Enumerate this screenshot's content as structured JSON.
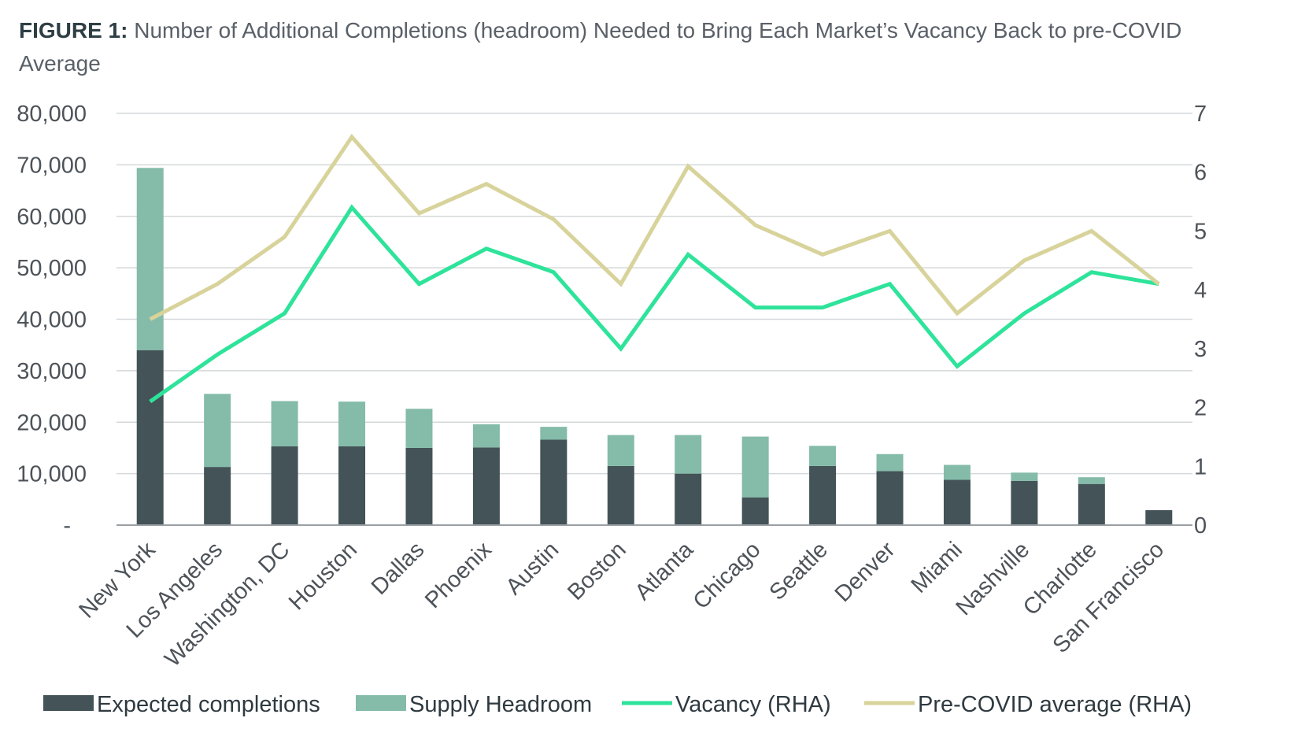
{
  "title": {
    "lead": "FIGURE 1:",
    "text": "Number of Additional Completions (headroom) Needed to Bring Each Market’s Vacancy Back to pre-COVID Average"
  },
  "chart_data": {
    "type": "bar",
    "stacked": true,
    "title": "FIGURE 1: Number of Additional Completions (headroom) Needed to Bring Each Market’s Vacancy Back to pre-COVID Average",
    "categories": [
      "New York",
      "Los Angeles",
      "Washington, DC",
      "Houston",
      "Dallas",
      "Phoenix",
      "Austin",
      "Boston",
      "Atlanta",
      "Chicago",
      "Seattle",
      "Denver",
      "Miami",
      "Nashville",
      "Charlotte",
      "San Francisco"
    ],
    "series": [
      {
        "name": "Expected completions",
        "kind": "bar",
        "axis": "left",
        "color": "#435357",
        "values": [
          34000,
          11300,
          15300,
          15300,
          15000,
          15100,
          16600,
          11500,
          10000,
          5400,
          11500,
          10500,
          8800,
          8600,
          8000,
          2900
        ]
      },
      {
        "name": "Supply Headroom",
        "kind": "bar",
        "axis": "left",
        "color": "#84bba9",
        "values": [
          35400,
          14200,
          8800,
          8700,
          7600,
          4500,
          2500,
          6000,
          7500,
          11800,
          3900,
          3300,
          2900,
          1600,
          1300,
          0
        ]
      },
      {
        "name": "Vacancy (RHA)",
        "kind": "line",
        "axis": "right",
        "color": "#2ee39a",
        "values": [
          2.1,
          2.9,
          3.6,
          5.4,
          4.1,
          4.7,
          4.3,
          3.0,
          4.6,
          3.7,
          3.7,
          4.1,
          2.7,
          3.6,
          4.3,
          4.1
        ]
      },
      {
        "name": "Pre-COVID average (RHA)",
        "kind": "line",
        "axis": "right",
        "color": "#d8d39b",
        "values": [
          3.5,
          4.1,
          4.9,
          6.6,
          5.3,
          5.8,
          5.2,
          4.1,
          6.1,
          5.1,
          4.6,
          5.0,
          3.6,
          4.5,
          5.0,
          4.1
        ]
      }
    ],
    "ylim": [
      0,
      80000
    ],
    "yticks": [
      "-",
      "10,000",
      "20,000",
      "30,000",
      "40,000",
      "50,000",
      "60,000",
      "70,000",
      "80,000"
    ],
    "y2lim": [
      0,
      7
    ],
    "y2ticks": [
      "0",
      "1",
      "2",
      "3",
      "4",
      "5",
      "6",
      "7"
    ],
    "xlabel": "",
    "ylabel": "",
    "grid": true,
    "legend_position": "bottom"
  }
}
